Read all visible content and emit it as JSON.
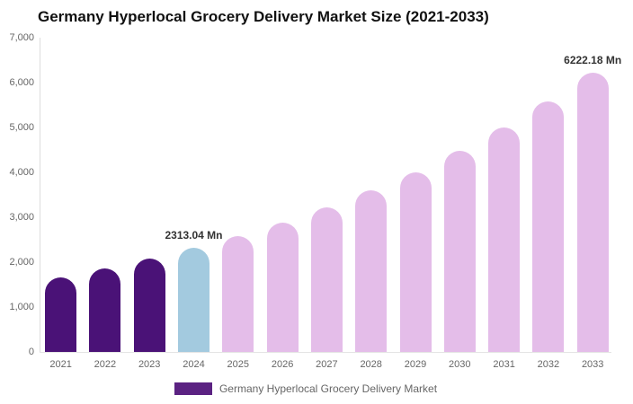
{
  "title": "Germany Hyperlocal Grocery Delivery Market Size (2021-2033)",
  "colors": {
    "bar_historical": "#4a1277",
    "bar_current": "#a3cadf",
    "bar_forecast": "#e4bde9",
    "legend_swatch": "#5b2282",
    "axis_line": "#dddddd",
    "tick_text": "#666666",
    "annotation_text": "#333333",
    "title_text": "#111111"
  },
  "chart_data": {
    "type": "bar",
    "title": "Germany Hyperlocal Grocery Delivery Market Size (2021-2033)",
    "categories": [
      "2021",
      "2022",
      "2023",
      "2024",
      "2025",
      "2026",
      "2027",
      "2028",
      "2029",
      "2030",
      "2031",
      "2032",
      "2033"
    ],
    "values": [
      1663,
      1856,
      2072,
      2313.04,
      2582,
      2882,
      3217,
      3591,
      4008,
      4474,
      4994,
      5575,
      6222.18
    ],
    "segments": [
      "historical",
      "historical",
      "historical",
      "current",
      "forecast",
      "forecast",
      "forecast",
      "forecast",
      "forecast",
      "forecast",
      "forecast",
      "forecast",
      "forecast"
    ],
    "annotations": [
      {
        "category": "2024",
        "text": "2313.04 Mn"
      },
      {
        "category": "2033",
        "text": "6222.18 Mn"
      }
    ],
    "xlabel": "",
    "ylabel": "",
    "ylim": [
      0,
      7000
    ],
    "ytick_step": 1000,
    "ytick_labels": [
      "0",
      "1,000",
      "2,000",
      "3,000",
      "4,000",
      "5,000",
      "6,000",
      "7,000"
    ],
    "grid": false,
    "legend_position": "bottom"
  },
  "legend": {
    "label": "Germany Hyperlocal Grocery Delivery Market"
  }
}
